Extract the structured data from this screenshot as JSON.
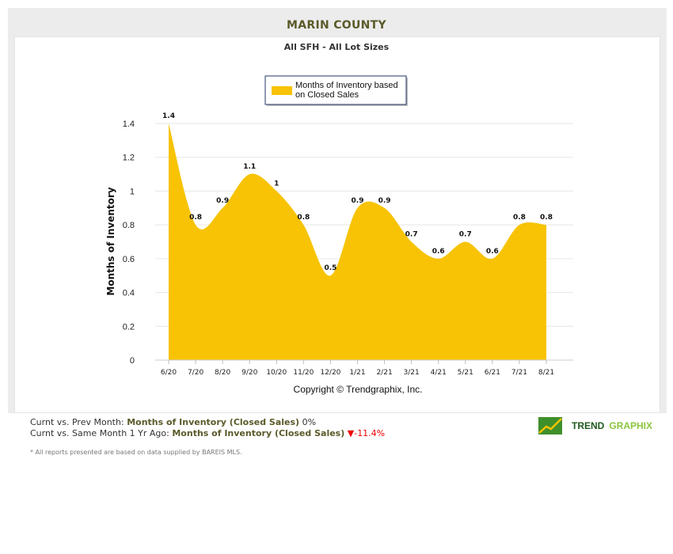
{
  "header": {
    "title": "MARIN COUNTY",
    "subtitle": "All SFH - All Lot Sizes"
  },
  "chart_data": {
    "type": "area",
    "categories": [
      "6/20",
      "7/20",
      "8/20",
      "9/20",
      "10/20",
      "11/20",
      "12/20",
      "1/21",
      "2/21",
      "3/21",
      "4/21",
      "5/21",
      "6/21",
      "7/21",
      "8/21"
    ],
    "series": [
      {
        "name": "Months of Inventory based on Closed Sales",
        "values": [
          1.4,
          0.8,
          0.9,
          1.1,
          1,
          0.8,
          0.5,
          0.9,
          0.9,
          0.7,
          0.6,
          0.7,
          0.6,
          0.8,
          0.8
        ],
        "color": "#f7c304"
      }
    ],
    "data_labels": [
      "1.4",
      "0.8",
      "0.9",
      "1.1",
      "1",
      "0.8",
      "0.5",
      "0.9",
      "0.9",
      "0.7",
      "0.6",
      "0.7",
      "0.6",
      "0.8",
      "0.8"
    ],
    "ylabel": "Months of Inventory",
    "xlabel": "",
    "ylim": [
      0,
      1.4
    ],
    "yticks": [
      "0",
      "0.2",
      "0.4",
      "0.6",
      "0.8",
      "1",
      "1.2",
      "1.4"
    ],
    "grid": true,
    "legend_placement": "top-center",
    "legend": [
      "Months of Inventory based",
      "on Closed Sales"
    ],
    "copyright": "Copyright © Trendgraphix, Inc."
  },
  "stats": {
    "prev_label": "Curnt vs. Prev Month:",
    "prev_metric": "Months of Inventory (Closed Sales)",
    "prev_value": "0%",
    "year_label": "Curnt vs. Same Month 1 Yr Ago:",
    "year_metric": "Months of Inventory (Closed Sales)",
    "year_value": "-11.4%"
  },
  "note": "* All reports presented are based on data supplied by BAREIS MLS.",
  "logo": {
    "part1": "TREND",
    "part2": "GRAPHIX"
  }
}
